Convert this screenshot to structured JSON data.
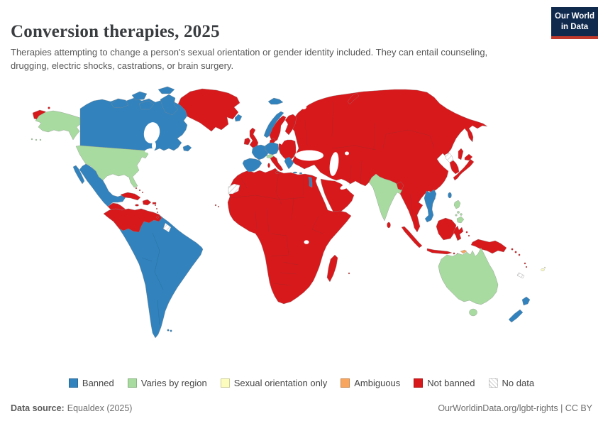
{
  "header": {
    "title": "Conversion therapies, 2025",
    "subtitle": "Therapies attempting to change a person's sexual orientation or gender identity included. They can entail counseling, drugging, electric shocks, castrations, or brain surgery.",
    "logo_line1": "Our World",
    "logo_line2": "in Data"
  },
  "chart_data": {
    "type": "choropleth-world-map",
    "title": "Conversion therapies, 2025",
    "legend_position": "bottom",
    "categories": [
      {
        "id": "banned",
        "label": "Banned",
        "color": "#3182bd"
      },
      {
        "id": "varies_by_region",
        "label": "Varies by region",
        "color": "#a7db9f"
      },
      {
        "id": "sexual_orientation_only",
        "label": "Sexual orientation only",
        "color": "#fcfcbf"
      },
      {
        "id": "ambiguous",
        "label": "Ambiguous",
        "color": "#f8a55f"
      },
      {
        "id": "not_banned",
        "label": "Not banned",
        "color": "#d7191c"
      },
      {
        "id": "no_data",
        "label": "No data",
        "color": "#ffffff",
        "hatch": true
      }
    ],
    "regions": {
      "greenland": "not_banned",
      "iceland": "banned",
      "canada": "banned",
      "united-states": "varies_by_region",
      "mexico": "banned",
      "central-america": "not_banned",
      "caribbean": "not_banned",
      "colombia-venezuela": "not_banned",
      "south-america": "banned",
      "suriname": "no_data",
      "norway": "banned",
      "svalbard": "banned",
      "sweden": "not_banned",
      "finland": "not_banned",
      "denmark": "not_banned",
      "united-kingdom": "not_banned",
      "ireland": "not_banned",
      "france": "banned",
      "iberia": "banned",
      "germany-benelux": "banned",
      "switzerland": "varies_by_region",
      "italy": "not_banned",
      "eastern-europe": "not_banned",
      "greece": "banned",
      "cyprus": "banned",
      "israel": "banned",
      "asia-mainland": "not_banned",
      "arabian-peninsula": "not_banned",
      "africa": "not_banned",
      "western-sahara": "no_data",
      "madagascar": "not_banned",
      "mauritius": "not_banned",
      "cape-verde": "not_banned",
      "india": "varies_by_region",
      "bangladesh": "not_banned",
      "sri-lanka": "not_banned",
      "vietnam": "banned",
      "north-korea": "no_data",
      "south-korea": "not_banned",
      "japan": "not_banned",
      "taiwan": "banned",
      "philippines": "varies_by_region",
      "indonesia": "not_banned",
      "east-timor": "ambiguous",
      "new-guinea": "not_banned",
      "solomon-islands": "not_banned",
      "vanuatu": "not_banned",
      "new-caledonia": "no_data",
      "fiji": "sexual_orientation_only",
      "australia": "varies_by_region",
      "new-zealand": "banned"
    }
  },
  "footer": {
    "source_label": "Data source:",
    "source_value": "Equaldex (2025)",
    "attribution": "OurWorldinData.org/lgbt-rights | CC BY"
  }
}
